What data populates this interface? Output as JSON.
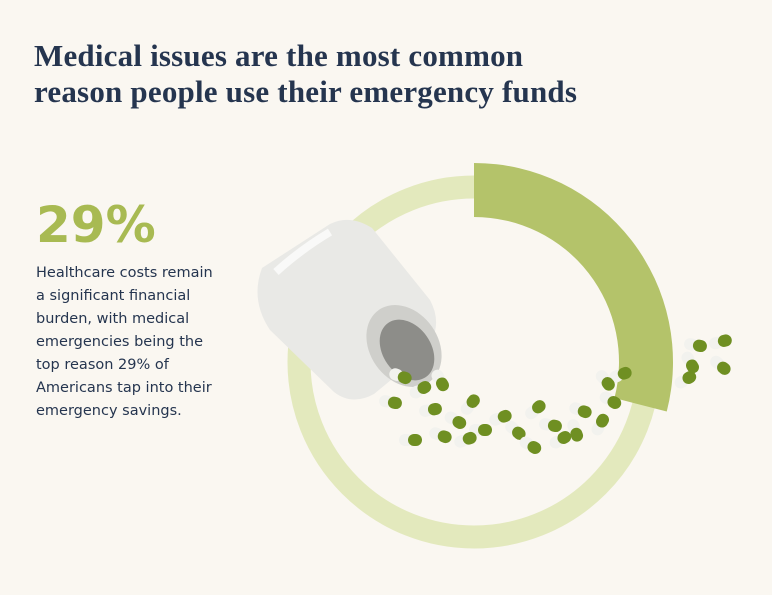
{
  "chart_data": {
    "type": "donut",
    "title": [
      "Medical issues are the most common",
      "reason people use their emergency funds"
    ],
    "values": [
      29
    ],
    "value_labels": [
      "29%"
    ],
    "color": "#b4c36a",
    "track_color": "#e3e9bd",
    "description": "Healthcare costs remain a significant financial burden, with medical emergencies being the top reason 29% of Americans tap into their emergency savings."
  }
}
